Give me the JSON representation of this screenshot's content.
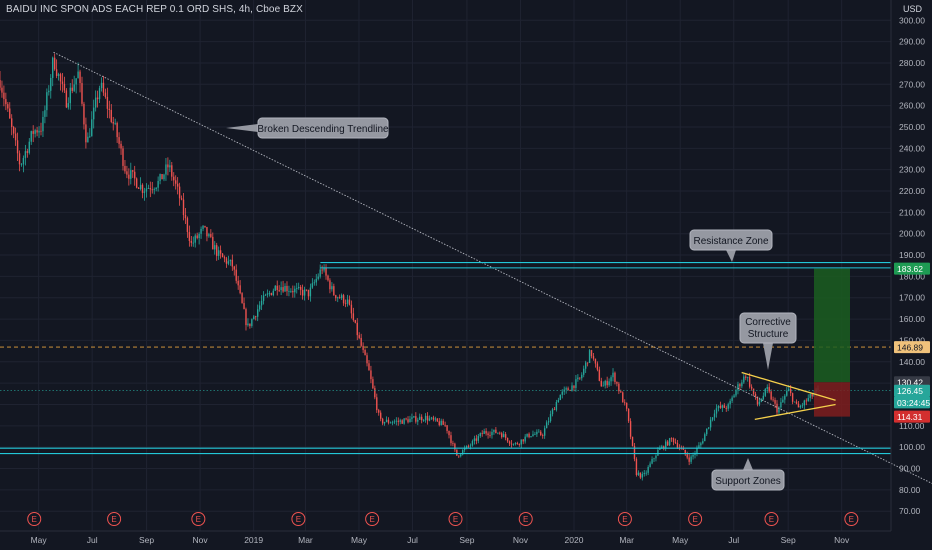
{
  "header": {
    "title": "BAIDU INC SPON ADS EACH REP 0.1 ORD SHS, 4h, Cboe BZX",
    "currency": "USD"
  },
  "colors": {
    "background": "#131722",
    "grid": "#1f2331",
    "up_candle": "#26a69a",
    "down_candle": "#ef5350",
    "zone_line": "#22c7d8",
    "trendline": "#b2b5be",
    "triangle": "#f5d04b",
    "target_box": "#1b5e20",
    "stop_box": "#7f1d1d",
    "dashed_level": "#e6a23c"
  },
  "chart_data": {
    "type": "candlestick",
    "x_tick_labels": [
      "May",
      "Jul",
      "Sep",
      "Nov",
      "2019",
      "Mar",
      "May",
      "Jul",
      "Sep",
      "Nov",
      "2020",
      "Mar",
      "May",
      "Jul",
      "Sep",
      "Nov"
    ],
    "y_tick_labels": [
      "300.00",
      "290.00",
      "280.00",
      "270.00",
      "260.00",
      "250.00",
      "240.00",
      "230.00",
      "220.00",
      "210.00",
      "200.00",
      "190.00",
      "180.00",
      "170.00",
      "160.00",
      "150.00",
      "140.00",
      "130.00",
      "120.00",
      "110.00",
      "100.00",
      "90.00",
      "80.00",
      "70.00"
    ],
    "ylim": [
      64,
      302
    ],
    "price_path": [
      [
        "2018-03-18",
        272
      ],
      [
        "2018-04-10",
        232
      ],
      [
        "2018-04-25",
        248
      ],
      [
        "2018-05-05",
        250
      ],
      [
        "2018-05-18",
        282
      ],
      [
        "2018-06-01",
        262
      ],
      [
        "2018-06-15",
        275
      ],
      [
        "2018-06-25",
        242
      ],
      [
        "2018-07-10",
        270
      ],
      [
        "2018-07-28",
        248
      ],
      [
        "2018-08-08",
        230
      ],
      [
        "2018-08-28",
        221
      ],
      [
        "2018-09-15",
        224
      ],
      [
        "2018-09-26",
        232
      ],
      [
        "2018-10-08",
        218
      ],
      [
        "2018-10-22",
        195
      ],
      [
        "2018-11-05",
        202
      ],
      [
        "2018-11-22",
        190
      ],
      [
        "2018-12-08",
        185
      ],
      [
        "2018-12-25",
        156
      ],
      [
        "2019-01-10",
        168
      ],
      [
        "2019-01-28",
        176
      ],
      [
        "2019-02-20",
        173
      ],
      [
        "2019-03-05",
        172
      ],
      [
        "2019-03-20",
        184
      ],
      [
        "2019-04-02",
        172
      ],
      [
        "2019-04-18",
        168
      ],
      [
        "2019-04-30",
        152
      ],
      [
        "2019-05-12",
        136
      ],
      [
        "2019-05-25",
        112
      ],
      [
        "2019-06-15",
        112
      ],
      [
        "2019-07-15",
        114
      ],
      [
        "2019-08-08",
        110
      ],
      [
        "2019-08-20",
        96
      ],
      [
        "2019-09-05",
        101
      ],
      [
        "2019-09-20",
        107
      ],
      [
        "2019-10-08",
        107
      ],
      [
        "2019-10-25",
        101
      ],
      [
        "2019-11-12",
        106
      ],
      [
        "2019-11-26",
        106
      ],
      [
        "2019-12-15",
        124
      ],
      [
        "2019-12-28",
        128
      ],
      [
        "2020-01-08",
        132
      ],
      [
        "2020-01-20",
        145
      ],
      [
        "2020-02-02",
        128
      ],
      [
        "2020-02-15",
        134
      ],
      [
        "2020-03-01",
        117
      ],
      [
        "2020-03-12",
        88
      ],
      [
        "2020-03-20",
        86
      ],
      [
        "2020-04-05",
        98
      ],
      [
        "2020-04-22",
        104
      ],
      [
        "2020-05-12",
        94
      ],
      [
        "2020-05-25",
        102
      ],
      [
        "2020-06-10",
        118
      ],
      [
        "2020-06-25",
        119
      ],
      [
        "2020-07-05",
        128
      ],
      [
        "2020-07-15",
        134
      ],
      [
        "2020-07-28",
        120
      ],
      [
        "2020-08-08",
        127
      ],
      [
        "2020-08-20",
        117
      ],
      [
        "2020-09-01",
        127
      ],
      [
        "2020-09-12",
        118
      ],
      [
        "2020-09-25",
        123
      ],
      [
        "2020-10-05",
        126.45
      ]
    ],
    "last_price": "126.45",
    "price_labels": [
      {
        "name": "resistance-target",
        "value": 183.62,
        "text": "183.62",
        "color": "#1e9b53"
      },
      {
        "name": "dashed-level",
        "value": 146.89,
        "text": "146.89",
        "color": "#f0c27b"
      },
      {
        "name": "entry",
        "value": 130.42,
        "text": "130.42",
        "color": "#363a45"
      },
      {
        "name": "last-price",
        "value": 126.45,
        "text": "126.45",
        "color": "#26a69a"
      },
      {
        "name": "countdown",
        "value": 121.0,
        "text": "03:24:45",
        "color": "#26a69a"
      },
      {
        "name": "stop",
        "value": 114.31,
        "text": "114.31",
        "color": "#d32f2f"
      }
    ],
    "zones": [
      {
        "name": "resistance-zone",
        "from": 184,
        "to": 186.5,
        "start": "2019-03-18"
      },
      {
        "name": "support-zone",
        "from": 97,
        "to": 99.5,
        "start": "2018-03-01"
      }
    ],
    "dashed_level": 146.89,
    "annotations": [
      {
        "text": "Broken Descending Trendline"
      },
      {
        "text": "Resistance Zone"
      },
      {
        "text": "Corrective Structure"
      },
      {
        "text": "Support Zones"
      }
    ],
    "earnings_marker_label": "E"
  }
}
